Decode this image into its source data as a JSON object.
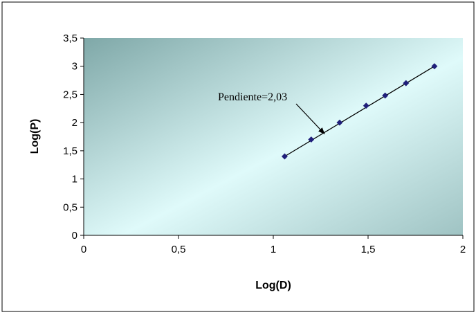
{
  "chart_data": {
    "type": "scatter",
    "title": "",
    "xlabel": "Log(D)",
    "ylabel": "Log(P)",
    "xlim": [
      0,
      2
    ],
    "ylim": [
      0,
      3.5
    ],
    "x_ticks": [
      "0",
      "0,5",
      "1",
      "1,5",
      "2"
    ],
    "y_ticks": [
      "0",
      "0,5",
      "1",
      "1,5",
      "2",
      "2,5",
      "3",
      "3,5"
    ],
    "grid": false,
    "legend": "none",
    "series": [
      {
        "x": [
          1.06,
          1.2,
          1.35,
          1.49,
          1.59,
          1.7,
          1.85
        ],
        "y": [
          1.4,
          1.7,
          2.0,
          2.3,
          2.48,
          2.7,
          3.0
        ],
        "marker": "diamond",
        "color": "#1f1f7a"
      }
    ],
    "trendline": {
      "from": [
        1.06,
        1.4
      ],
      "to": [
        1.85,
        3.0
      ],
      "color": "#000000"
    },
    "annotation": {
      "text": "Pendiente=2,03",
      "arrow_target": [
        1.27,
        1.8
      ]
    },
    "plot_background": {
      "from": "#7fa8a8",
      "via": "#dffafa",
      "to": "#9fc3c3"
    }
  }
}
